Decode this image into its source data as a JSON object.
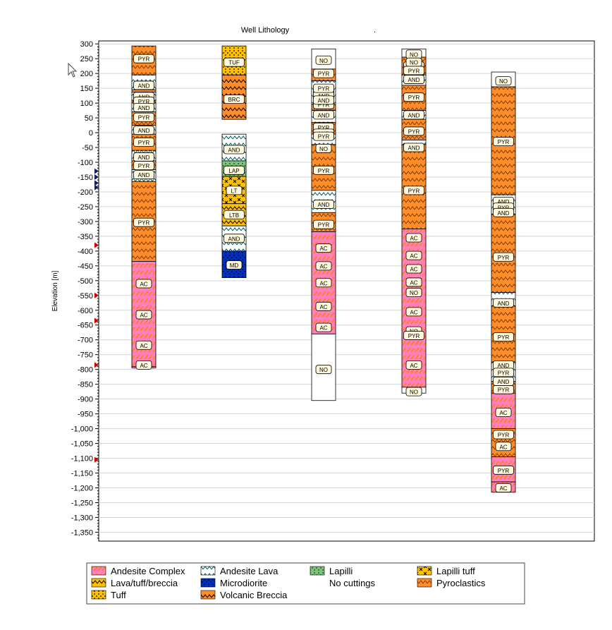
{
  "chart_data": {
    "type": "well-lithology-log",
    "title": "Well Lithology",
    "title_suffix": ".",
    "ylabel": "Elevation [m]",
    "ylim": [
      -1380,
      310
    ],
    "yticks": [
      300,
      250,
      200,
      150,
      100,
      50,
      0,
      -50,
      -100,
      -150,
      -200,
      -250,
      -300,
      -350,
      -400,
      -450,
      -500,
      -550,
      -600,
      -650,
      -700,
      -750,
      -800,
      -850,
      -900,
      -950,
      -1000,
      -1050,
      -1100,
      -1150,
      -1200,
      -1250,
      -1300,
      -1350
    ],
    "ytick_labels": [
      "300",
      "250",
      "200",
      "150",
      "100",
      "50",
      "0",
      "-50",
      "-100",
      "-150",
      "-200",
      "-250",
      "-300",
      "-350",
      "-400",
      "-450",
      "-500",
      "-550",
      "-600",
      "-650",
      "-700",
      "-750",
      "-800",
      "-850",
      "-900",
      "-950",
      "-1,000",
      "-1,050",
      "-1,100",
      "-1,150",
      "-1,200",
      "-1,250",
      "-1,300",
      "-1,350"
    ],
    "grid": true,
    "legend_position": "bottom",
    "lithologies": {
      "AC": {
        "name": "Andesite Complex",
        "color": "#ff7fbf",
        "pattern": "slash",
        "patternColor": "#ff7f00"
      },
      "AND": {
        "name": "Andesite Lava",
        "color": "#ffffff",
        "pattern": "chevron",
        "patternColor": "#005a5a"
      },
      "LAP": {
        "name": "Lapilli",
        "color": "#80c080",
        "pattern": "dots",
        "patternColor": "#005000"
      },
      "LT": {
        "name": "Lapilli tuff",
        "color": "#ffc000",
        "pattern": "cross",
        "patternColor": "#000000"
      },
      "LTB": {
        "name": "Lava/tuff/breccia",
        "color": "#ffc000",
        "pattern": "chevron",
        "patternColor": "#000000"
      },
      "MD": {
        "name": "Microdiorite",
        "color": "#0030c0",
        "pattern": "dots",
        "patternColor": "#000000"
      },
      "NO": {
        "name": "No cuttings",
        "color": "#ffffff",
        "pattern": "none",
        "patternColor": "#000000"
      },
      "PYR": {
        "name": "Pyroclastics",
        "color": "#ff8c2a",
        "pattern": "chevron",
        "patternColor": "#804000"
      },
      "TUF": {
        "name": "Tuff",
        "color": "#ffc000",
        "pattern": "dots",
        "patternColor": "#000000"
      },
      "BRC": {
        "name": "Volcanic Breccia",
        "color": "#ff8c2a",
        "pattern": "chevron",
        "patternColor": "#000000"
      }
    },
    "legend": [
      {
        "code": "AC",
        "label": "Andesite Complex"
      },
      {
        "code": "AND",
        "label": "Andesite Lava"
      },
      {
        "code": "LAP",
        "label": "Lapilli"
      },
      {
        "code": "LT",
        "label": "Lapilli tuff"
      },
      {
        "code": "LTB",
        "label": "Lava/tuff/breccia"
      },
      {
        "code": "MD",
        "label": "Microdiorite"
      },
      {
        "code": "NO",
        "label": "No cuttings"
      },
      {
        "code": "PYR",
        "label": "Pyroclastics"
      },
      {
        "code": "TUF",
        "label": "Tuff"
      },
      {
        "code": "BRC",
        "label": "Volcanic Breccia"
      }
    ],
    "log_markers": [
      -130,
      -150,
      -170,
      -185,
      -380,
      -550,
      -635,
      -785,
      -1105
    ],
    "wells": [
      {
        "intervals": [
          {
            "top": 293,
            "bottom": 195,
            "code": "PYR",
            "label": 250
          },
          {
            "top": 195,
            "bottom": 145,
            "code": "AND",
            "label": 160
          },
          {
            "top": 145,
            "bottom": 137,
            "code": "PYR",
            "label": null
          },
          {
            "top": 137,
            "bottom": 110,
            "code": "AND",
            "label": 122
          },
          {
            "top": 110,
            "bottom": 100,
            "code": "PYR",
            "label": 106
          },
          {
            "top": 100,
            "bottom": 70,
            "code": "AND",
            "label": 85
          },
          {
            "top": 70,
            "bottom": 25,
            "code": "PYR",
            "label": 52
          },
          {
            "top": 25,
            "bottom": -5,
            "code": "AND",
            "label": 8
          },
          {
            "top": -5,
            "bottom": -60,
            "code": "PYR",
            "label": -32
          },
          {
            "top": -60,
            "bottom": -95,
            "code": "AND",
            "label": -82
          },
          {
            "top": -95,
            "bottom": -125,
            "code": "PYR",
            "label": -111
          },
          {
            "top": -125,
            "bottom": -165,
            "code": "AND",
            "label": -142
          },
          {
            "top": -165,
            "bottom": -435,
            "code": "PYR",
            "label": -303
          },
          {
            "top": -435,
            "bottom": -790,
            "code": "AC",
            "label": -510
          },
          {
            "top": -790,
            "bottom": -790,
            "code": "AC",
            "label": -785
          }
        ],
        "extra_labels": [
          {
            "code": "AC",
            "y": -615
          },
          {
            "code": "AC",
            "y": -718
          }
        ]
      },
      {
        "intervals": [
          {
            "top": 293,
            "bottom": 195,
            "code": "TUF",
            "label": 238
          },
          {
            "top": 195,
            "bottom": 45,
            "code": "BRC",
            "label": 113
          },
          {
            "top": -5,
            "bottom": -95,
            "code": "AND",
            "label": -57
          },
          {
            "top": -95,
            "bottom": -148,
            "code": "LAP",
            "label": -127
          },
          {
            "top": -148,
            "bottom": -240,
            "code": "LT",
            "label": -195
          },
          {
            "top": -240,
            "bottom": -315,
            "code": "LTB",
            "label": -277
          },
          {
            "top": -315,
            "bottom": -400,
            "code": "AND",
            "label": -357
          },
          {
            "top": -400,
            "bottom": -490,
            "code": "MD",
            "label": -447
          }
        ],
        "extra_labels": []
      },
      {
        "intervals": [
          {
            "top": 283,
            "bottom": 215,
            "code": "NO",
            "label": 245
          },
          {
            "top": 215,
            "bottom": 175,
            "code": "PYR",
            "label": 200
          },
          {
            "top": 175,
            "bottom": 95,
            "code": "AND",
            "label": 140
          },
          {
            "top": 95,
            "bottom": 75,
            "code": "PYR",
            "label": 95
          },
          {
            "top": 75,
            "bottom": 35,
            "code": "AND",
            "label": 60
          },
          {
            "top": 35,
            "bottom": -5,
            "code": "PYR",
            "label": 18
          },
          {
            "top": -5,
            "bottom": -40,
            "code": "AND",
            "label": -2
          },
          {
            "top": -40,
            "bottom": -195,
            "code": "PYR",
            "label": -127
          },
          {
            "top": -195,
            "bottom": -270,
            "code": "AND",
            "label": -242
          },
          {
            "top": -270,
            "bottom": -335,
            "code": "PYR",
            "label": -310
          },
          {
            "top": -335,
            "bottom": -680,
            "code": "AC",
            "label": -390
          },
          {
            "top": -680,
            "bottom": -905,
            "code": "NO",
            "label": -800
          }
        ],
        "extra_labels": [
          {
            "code": "AND",
            "y": 125
          },
          {
            "code": "AND",
            "y": 110
          },
          {
            "code": "PYR",
            "y": 150
          },
          {
            "code": "PYR",
            "y": -12
          },
          {
            "code": "NO",
            "y": -53
          },
          {
            "code": "AC",
            "y": -450
          },
          {
            "code": "AC",
            "y": -507
          },
          {
            "code": "AC",
            "y": -587
          },
          {
            "code": "AC",
            "y": -658
          }
        ]
      },
      {
        "intervals": [
          {
            "top": 283,
            "bottom": 255,
            "code": "NO",
            "label": 265
          },
          {
            "top": 255,
            "bottom": 195,
            "code": "PYR",
            "label": 225
          },
          {
            "top": 195,
            "bottom": 160,
            "code": "AND",
            "label": 180
          },
          {
            "top": 160,
            "bottom": 75,
            "code": "PYR",
            "label": 120
          },
          {
            "top": 75,
            "bottom": 45,
            "code": "AND",
            "label": 60
          },
          {
            "top": 45,
            "bottom": -25,
            "code": "PYR",
            "label": 5
          },
          {
            "top": -25,
            "bottom": -40,
            "code": "AND",
            "label": -50
          },
          {
            "top": -40,
            "bottom": -325,
            "code": "PYR",
            "label": -195
          },
          {
            "top": -325,
            "bottom": -860,
            "code": "AC",
            "label": -355
          },
          {
            "top": -860,
            "bottom": -880,
            "code": "NO",
            "label": -875
          }
        ],
        "extra_labels": [
          {
            "code": "NO",
            "y": 238
          },
          {
            "code": "PYR",
            "y": 210
          },
          {
            "code": "AC",
            "y": -415
          },
          {
            "code": "AC",
            "y": -460
          },
          {
            "code": "AC",
            "y": -505
          },
          {
            "code": "NO",
            "y": -540
          },
          {
            "code": "AC",
            "y": -605
          },
          {
            "code": "NO",
            "y": -670
          },
          {
            "code": "PYR",
            "y": -685
          },
          {
            "code": "AC",
            "y": -785
          }
        ]
      },
      {
        "intervals": [
          {
            "top": 205,
            "bottom": 155,
            "code": "NO",
            "label": 175
          },
          {
            "top": 155,
            "bottom": -210,
            "code": "PYR",
            "label": -30
          },
          {
            "top": -210,
            "bottom": -275,
            "code": "AND",
            "label": -232
          },
          {
            "top": -275,
            "bottom": -540,
            "code": "PYR",
            "label": -420
          },
          {
            "top": -540,
            "bottom": -585,
            "code": "AND",
            "label": -575
          },
          {
            "top": -585,
            "bottom": -775,
            "code": "PYR",
            "label": -690
          },
          {
            "top": -775,
            "bottom": -840,
            "code": "AND",
            "label": -785
          },
          {
            "top": -840,
            "bottom": -880,
            "code": "PYR",
            "label": -868
          },
          {
            "top": -880,
            "bottom": -1000,
            "code": "AC",
            "label": -945
          },
          {
            "top": -1000,
            "bottom": -1095,
            "code": "PYR",
            "label": -1020
          },
          {
            "top": -1095,
            "bottom": -1180,
            "code": "AC",
            "label": -1060
          },
          {
            "top": -1180,
            "bottom": -1215,
            "code": "AC",
            "label": -1200
          }
        ],
        "extra_labels": [
          {
            "code": "PYR",
            "y": -252
          },
          {
            "code": "AND",
            "y": -270
          },
          {
            "code": "PYR",
            "y": -810
          },
          {
            "code": "AND",
            "y": -840
          },
          {
            "code": "PYR",
            "y": -1140
          }
        ]
      }
    ]
  }
}
